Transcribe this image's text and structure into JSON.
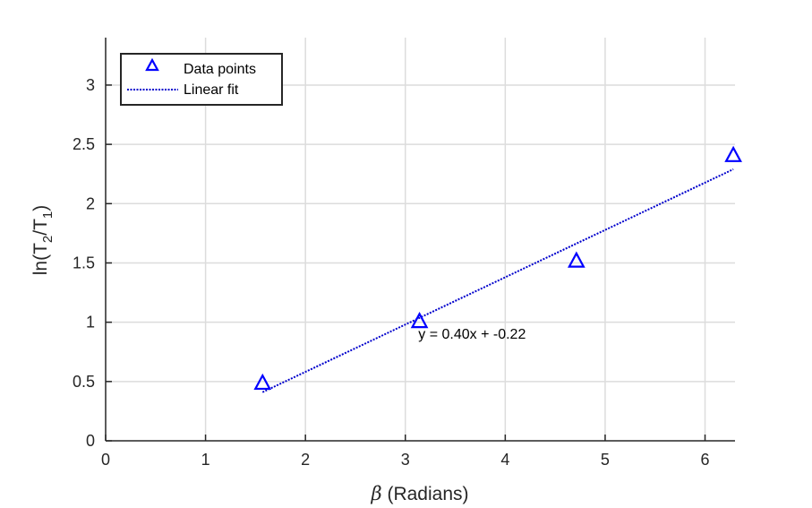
{
  "chart_data": {
    "type": "scatter",
    "xlabel_symbol": "β",
    "xlabel_text": " (Radians)",
    "ylabel_parts": [
      "ln(T",
      "2",
      "/T",
      "1",
      ")"
    ],
    "xlim": [
      0,
      6.3
    ],
    "ylim": [
      0,
      3.4
    ],
    "xticks": [
      0,
      1,
      2,
      3,
      4,
      5,
      6
    ],
    "xtick_labels": [
      "0",
      "1",
      "2",
      "3",
      "4",
      "5",
      "6"
    ],
    "yticks": [
      0,
      0.5,
      1,
      1.5,
      2,
      2.5,
      3
    ],
    "ytick_labels": [
      "0",
      "0.5",
      "1",
      "1.5",
      "2",
      "2.5",
      "3"
    ],
    "grid": true,
    "legend_position": "top-left",
    "series": [
      {
        "name": "Data points",
        "kind": "markers",
        "marker": "triangle",
        "color": "#0000ff",
        "x": [
          1.5708,
          3.1416,
          4.7124,
          6.2832
        ],
        "y": [
          0.49,
          1.01,
          1.52,
          2.41
        ]
      },
      {
        "name": "Linear fit",
        "kind": "line",
        "style": "dotted",
        "color": "#0000cc",
        "x": [
          1.5708,
          6.2832
        ],
        "y": [
          0.41,
          2.29
        ]
      }
    ],
    "annotation": {
      "text": "y = 0.40x + -0.22",
      "x": 3.13,
      "y": 0.86
    }
  }
}
